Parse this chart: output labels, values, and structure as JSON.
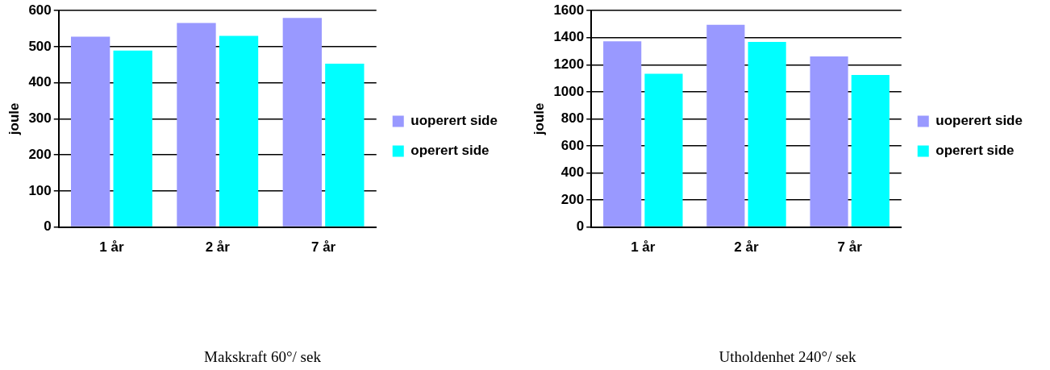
{
  "chart_data": [
    {
      "type": "bar",
      "ylabel": "joule",
      "categories": [
        "1 år",
        "2 år",
        "7 år"
      ],
      "series": [
        {
          "name": "uoperert side",
          "color": "#9999ff",
          "values": [
            528,
            566,
            580
          ]
        },
        {
          "name": "operert side",
          "color": "#00ffff",
          "values": [
            489,
            530,
            453
          ]
        }
      ],
      "ylim": [
        0,
        600
      ],
      "yticks": [
        0,
        100,
        200,
        300,
        400,
        500,
        600
      ],
      "grid": "y",
      "legend": "right",
      "annotations": [
        "Makskraft 60°/ sek"
      ]
    },
    {
      "type": "bar",
      "ylabel": "joule",
      "categories": [
        "1 år",
        "2 år",
        "7 år"
      ],
      "series": [
        {
          "name": "uoperert side",
          "color": "#9999ff",
          "values": [
            1373,
            1496,
            1261
          ]
        },
        {
          "name": "operert side",
          "color": "#00ffff",
          "values": [
            1133,
            1369,
            1125
          ]
        }
      ],
      "ylim": [
        0,
        1600
      ],
      "yticks": [
        0,
        200,
        400,
        600,
        800,
        1000,
        1200,
        1400,
        1600
      ],
      "grid": "y",
      "legend": "right",
      "annotations": [
        "Utholdenhet 240°/ sek"
      ]
    }
  ]
}
